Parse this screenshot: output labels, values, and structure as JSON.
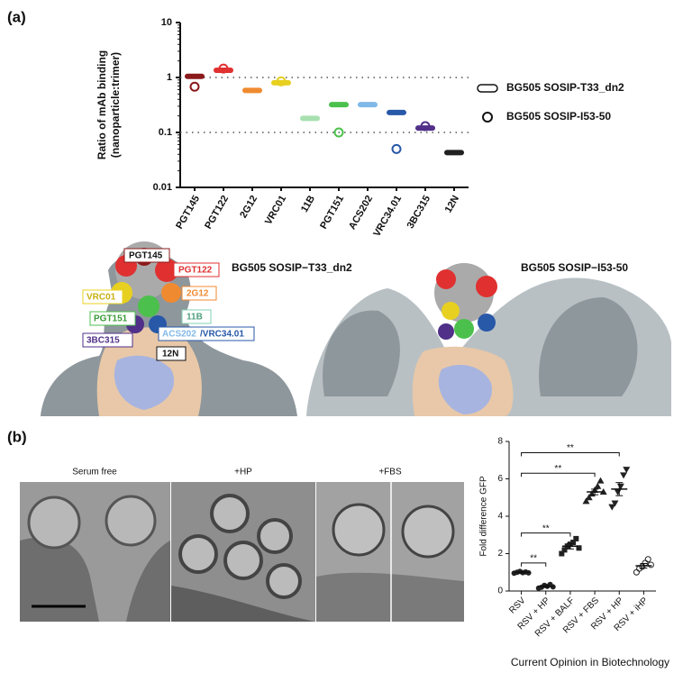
{
  "panel_labels": [
    "(a)",
    "(b)"
  ],
  "chart_data": [
    {
      "type": "dot",
      "log_scale": true,
      "ylabel": [
        "Ratio of mAb binding",
        "(nanoparticle:trimer)"
      ],
      "categories": [
        "PGT145",
        "PGT122",
        "2G12",
        "VRC01",
        "11B",
        "PGT151",
        "ACS202",
        "VRC34.01",
        "3BC315",
        "12N"
      ],
      "colors": [
        "#8b1a1a",
        "#e03030",
        "#f08a30",
        "#e8d020",
        "#a8e0b0",
        "#4cc04c",
        "#80b8e8",
        "#2858a8",
        "#503088",
        "#202020"
      ],
      "series": [
        {
          "name": "BG505 SOSIP-T33_dn2",
          "marker": "pill",
          "values": [
            1.05,
            1.35,
            0.58,
            0.8,
            0.18,
            0.32,
            0.32,
            0.23,
            0.12,
            0.043
          ]
        },
        {
          "name": "BG505 SOSIP-I53-50",
          "marker": "open-circle",
          "values": [
            0.68,
            1.45,
            null,
            0.85,
            null,
            0.1,
            null,
            0.05,
            0.13,
            null
          ]
        }
      ],
      "ylim": [
        0.01,
        10
      ],
      "yticks": [
        0.01,
        0.1,
        1,
        10
      ],
      "reference_lines": [
        1,
        0.1
      ],
      "legend": "right"
    },
    {
      "type": "dot",
      "ylabel": "Fold difference GFP",
      "categories": [
        "RSV",
        "RSV + HP",
        "RSV + BALF",
        "RSV + FBS",
        "RSV + HP",
        "RSV + iHP"
      ],
      "markers": [
        "circle",
        "circle",
        "square",
        "triangle",
        "triangle-down",
        "open-circle"
      ],
      "color": "#222222",
      "points": [
        [
          0.95,
          1.0,
          1.05,
          0.98,
          1.02,
          0.97
        ],
        [
          0.15,
          0.2,
          0.3,
          0.25,
          0.35,
          0.22
        ],
        [
          2.0,
          2.2,
          2.4,
          2.5,
          2.6,
          2.8,
          2.3
        ],
        [
          4.8,
          5.0,
          5.2,
          5.4,
          5.6,
          5.9,
          5.3
        ],
        [
          4.5,
          4.7,
          5.3,
          5.6,
          6.2,
          6.5
        ],
        [
          1.0,
          1.2,
          1.3,
          1.5,
          1.7,
          1.4
        ]
      ],
      "values": [
        1.0,
        0.25,
        2.4,
        5.3,
        5.45,
        1.35
      ],
      "errors": [
        0.03,
        0.05,
        0.15,
        0.15,
        0.35,
        0.12
      ],
      "ylim": [
        0,
        8
      ],
      "yticks": [
        0,
        2,
        4,
        6,
        8
      ],
      "annotations": [
        {
          "label": "**",
          "from": 0,
          "to": 1,
          "y": 1.5
        },
        {
          "label": "**",
          "from": 0,
          "to": 2,
          "y": 3.1
        },
        {
          "label": "**",
          "from": 0,
          "to": 3,
          "y": 6.3
        },
        {
          "label": "**",
          "from": 0,
          "to": 4,
          "y": 7.4
        }
      ]
    }
  ],
  "structures": {
    "left_title": "BG505 SOSIP−T33_dn2",
    "right_title": "BG505 SOSIP−I53-50",
    "epitopes": [
      "PGT145",
      "PGT122",
      "VRC01",
      "2G12",
      "PGT151",
      "11B",
      "3BC315",
      "ACS202",
      "/VRC34.01",
      "12N"
    ]
  },
  "micrographs": [
    "Serum free",
    "+HP",
    "+FBS"
  ],
  "footer": "Current Opinion in Biotechnology"
}
